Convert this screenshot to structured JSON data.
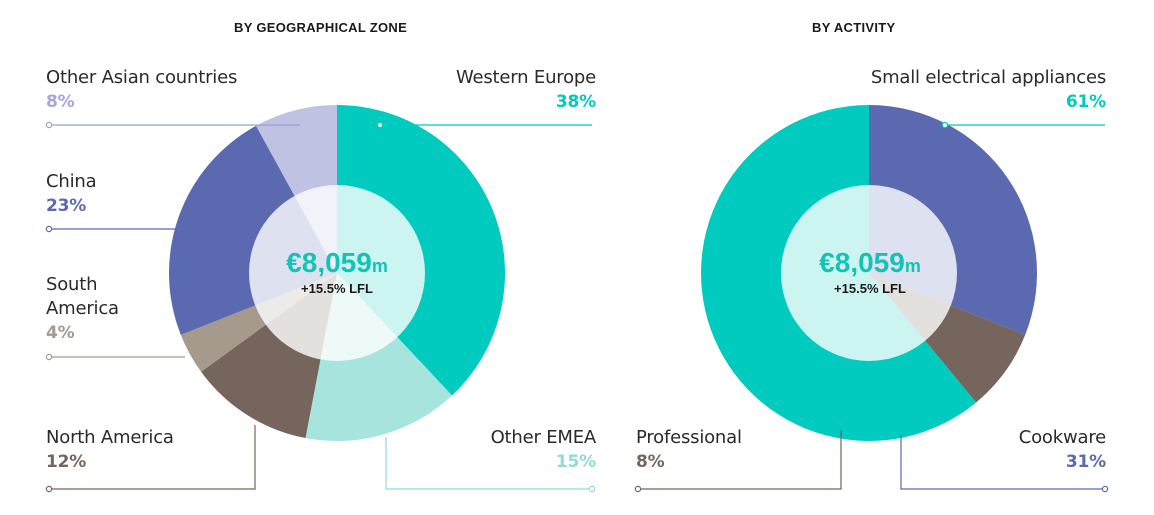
{
  "chart_data": [
    {
      "type": "pie",
      "title": "BY GEOGRAPHICAL ZONE",
      "center_value": "€8,059",
      "center_unit": "m",
      "center_sub": "+15.5% LFL",
      "categories": [
        "Western Europe",
        "Other EMEA",
        "North America",
        "South America",
        "China",
        "Other Asian countries"
      ],
      "values": [
        38,
        15,
        12,
        4,
        23,
        8
      ],
      "labels": [
        "38%",
        "15%",
        "12%",
        "4%",
        "23%",
        "8%"
      ],
      "colors": [
        "#00cbbe",
        "#a6e4dd",
        "#75655d",
        "#a59a8b",
        "#5a69b0",
        "#bfc2e3"
      ]
    },
    {
      "type": "pie",
      "title": "BY ACTIVITY",
      "center_value": "€8,059",
      "center_unit": "m",
      "center_sub": "+15.5% LFL",
      "categories": [
        "Cookware",
        "Professional",
        "Small electrical appliances"
      ],
      "values": [
        31,
        8,
        61
      ],
      "labels": [
        "31%",
        "8%",
        "61%"
      ],
      "colors": [
        "#5a69b0",
        "#75655d",
        "#00cbbe"
      ]
    }
  ]
}
